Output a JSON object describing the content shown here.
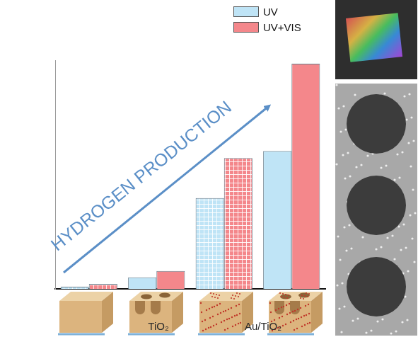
{
  "chart_data": {
    "type": "bar",
    "categories": [
      null,
      null,
      null,
      null
    ],
    "series": [
      {
        "name": "UV",
        "color": "#bfe4f6",
        "values": [
          3,
          16,
          127,
          193
        ]
      },
      {
        "name": "UV+VIS",
        "color": "#f4878b",
        "values": [
          7,
          25,
          183,
          315
        ]
      }
    ],
    "ylim": [
      0,
      320
    ],
    "tick_labels": false,
    "grid": false,
    "legend": "top right",
    "annotations": [
      "HYDROGEN PRODUCTION",
      "TiO₂",
      "Au/TiO₂"
    ]
  }
}
